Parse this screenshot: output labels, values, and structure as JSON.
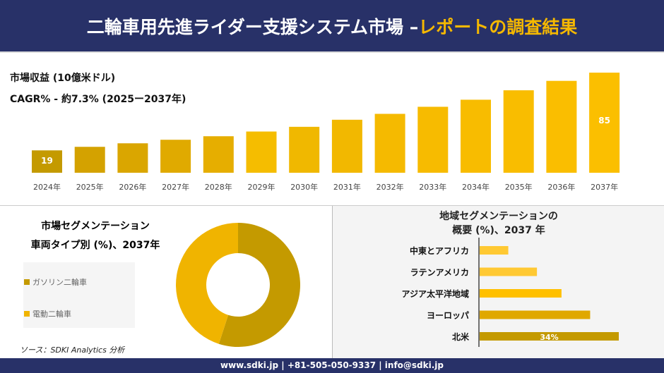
{
  "header": {
    "title": "二輪車用先進ライダー支援システム市場 –",
    "accent": "レポートの調査結果"
  },
  "colors": {
    "navy": "#283168",
    "gold": "#f5b800",
    "dark_gold": "#c49a00"
  },
  "revenue": {
    "title": "市場収益 (10億米ドル)",
    "cagr": "CAGR% - 約7.3% (2025ー2037年)"
  },
  "chart_data": [
    {
      "type": "bar",
      "title": "市場収益 (10億米ドル)",
      "categories": [
        "2024年",
        "2025年",
        "2026年",
        "2027年",
        "2028年",
        "2029年",
        "2030年",
        "2031年",
        "2032年",
        "2033年",
        "2034年",
        "2035年",
        "2036年",
        "2037年"
      ],
      "values": [
        19,
        22,
        25,
        28,
        31,
        35,
        39,
        45,
        50,
        56,
        62,
        70,
        78,
        85
      ],
      "data_labels": {
        "0": "19",
        "13": "85"
      }
    },
    {
      "type": "pie",
      "variant": "donut",
      "title": "市場セグメンテーション 車両タイプ別 (%)、2037年",
      "categories": [
        "ガソリン二輪車",
        "電動二輪車"
      ],
      "values": [
        55,
        45
      ],
      "colors": [
        "#c49a00",
        "#f0b400"
      ],
      "legend": "left"
    },
    {
      "type": "bar",
      "orientation": "horizontal",
      "title": "地域セグメンテーションの 概要 (%)、2037 年",
      "categories": [
        "中東とアフリカ",
        "ラテンアメリカ",
        "アジア太平洋地域",
        "ヨーロッパ",
        "北米"
      ],
      "values": [
        7,
        14,
        20,
        27,
        34
      ],
      "data_labels": {
        "4": "34%"
      },
      "colors": [
        "#ffc933",
        "#ffc933",
        "#ffc000",
        "#e0a800",
        "#c49a00"
      ]
    }
  ],
  "segment": {
    "title1": "市場セグメンテーション",
    "title2": "車両タイプ別 (%)、2037年"
  },
  "region": {
    "title1": "地域セグメンテーションの",
    "title2": "概要 (%)、2037 年"
  },
  "source": "ソース：SDKI Analytics 分析",
  "footer": "www.sdki.jp | +81-505-050-9337 | info@sdki.jp"
}
